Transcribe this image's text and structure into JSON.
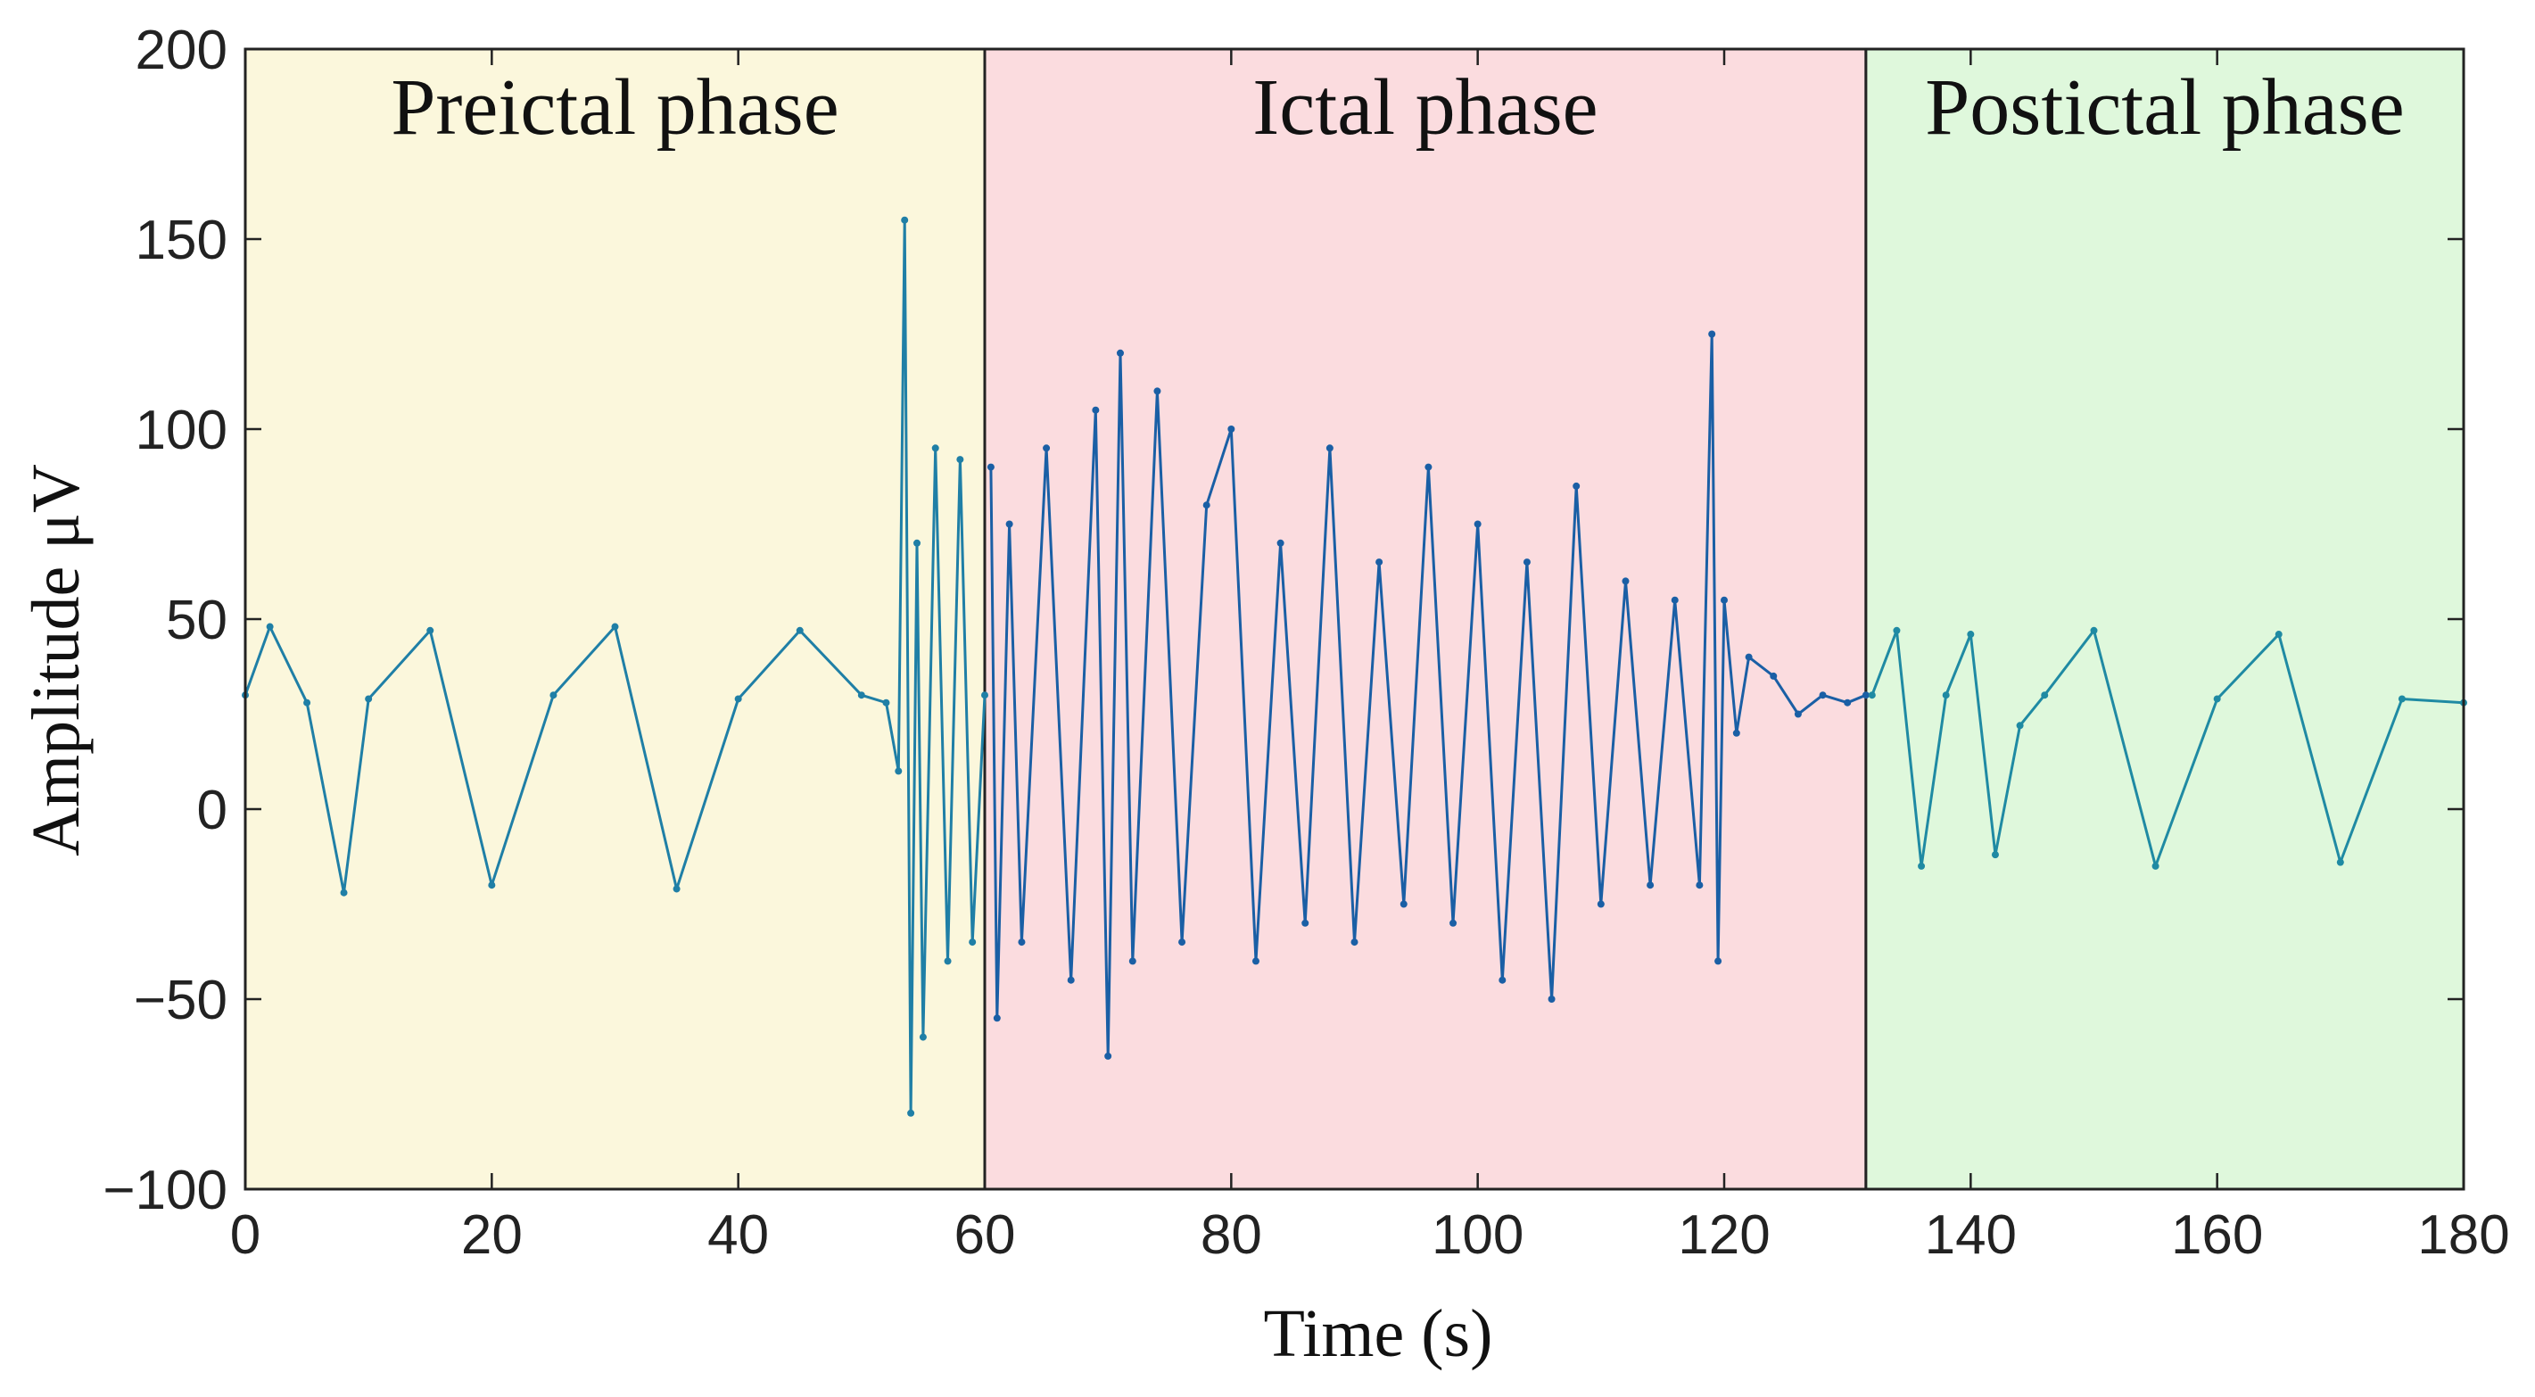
{
  "chart_data": {
    "type": "line",
    "title": "",
    "xlabel": "Time (s)",
    "ylabel": "Amplitude μV",
    "xlim": [
      0,
      180
    ],
    "ylim": [
      -100,
      200
    ],
    "xticks": [
      0,
      20,
      40,
      60,
      80,
      100,
      120,
      140,
      160,
      180
    ],
    "yticks": [
      -100,
      -50,
      0,
      50,
      100,
      150,
      200
    ],
    "xtick_labels": [
      "0",
      "20",
      "40",
      "60",
      "80",
      "100",
      "120",
      "140",
      "160",
      "180"
    ],
    "ytick_labels": [
      "−100",
      "−50",
      "0",
      "50",
      "100",
      "150",
      "200"
    ],
    "grid": false,
    "phases": [
      {
        "label": "Preictal phase",
        "x_start": 0,
        "x_end": 60,
        "color": "#fbf7dc"
      },
      {
        "label": "Ictal phase",
        "x_start": 60,
        "x_end": 131.5,
        "color": "#fbdcdf"
      },
      {
        "label": "Postictal phase",
        "x_start": 131.5,
        "x_end": 180,
        "color": "#dff8dc"
      }
    ],
    "series": [
      {
        "color": "#1f7fa6",
        "x": [
          0,
          2,
          5,
          8,
          10,
          15,
          20,
          25,
          30,
          35,
          40,
          45,
          50,
          52,
          53,
          53.5,
          54,
          54.5,
          55,
          56,
          57,
          58,
          59,
          60
        ],
        "y": [
          30,
          48,
          28,
          -22,
          29,
          47,
          -20,
          30,
          48,
          -21,
          29,
          47,
          30,
          28,
          10,
          155,
          -80,
          70,
          -60,
          95,
          -40,
          92,
          -35,
          30
        ]
      },
      {
        "color": "#1a5fa5",
        "x": [
          60.5,
          61,
          62,
          63,
          65,
          67,
          69,
          70,
          71,
          72,
          74,
          76,
          78,
          80,
          82,
          84,
          86,
          88,
          90,
          92,
          94,
          96,
          98,
          100,
          102,
          104,
          106,
          108,
          110,
          112,
          114,
          116,
          118,
          119,
          119.5,
          120,
          121,
          122,
          124,
          126,
          128,
          130,
          131.5
        ],
        "y": [
          90,
          -55,
          75,
          -35,
          95,
          -45,
          105,
          -65,
          120,
          -40,
          110,
          -35,
          80,
          100,
          -40,
          70,
          -30,
          95,
          -35,
          65,
          -25,
          90,
          -30,
          75,
          -45,
          65,
          -50,
          85,
          -25,
          60,
          -20,
          55,
          -20,
          125,
          -40,
          55,
          20,
          40,
          35,
          25,
          30,
          28,
          30
        ]
      },
      {
        "color": "#1f8aa3",
        "x": [
          132,
          134,
          136,
          138,
          140,
          142,
          144,
          146,
          150,
          155,
          160,
          165,
          170,
          175,
          180
        ],
        "y": [
          30,
          47,
          -15,
          30,
          46,
          -12,
          22,
          30,
          47,
          -15,
          29,
          46,
          -14,
          29,
          28
        ]
      }
    ]
  }
}
